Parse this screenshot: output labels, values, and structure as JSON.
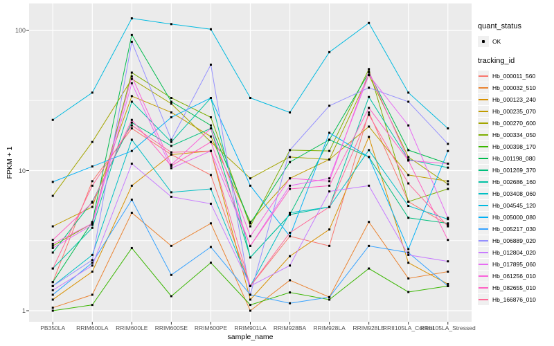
{
  "legend": {
    "quant_status_title": "quant_status",
    "quant_status_items": [
      {
        "label": "OK",
        "marker": "black-point"
      }
    ],
    "tracking_id_title": "tracking_id"
  },
  "axes": {
    "x_title": "sample_name",
    "y_title": "FPKM + 1",
    "y_tick_labels": [
      "100",
      "10",
      "1"
    ]
  },
  "chart_data": {
    "type": "line",
    "title": "",
    "xlabel": "sample_name",
    "ylabel": "FPKM + 1",
    "y_scale": "log10",
    "ylim": [
      0.9,
      160
    ],
    "y_ticks": [
      100,
      10,
      1
    ],
    "y_minor_ticks": [
      31.623,
      3.1623
    ],
    "grid": true,
    "legend_position": "right",
    "point_color": "#000000",
    "panel_background": "#ebebeb",
    "grid_color": "#ffffff",
    "categories": [
      "PB350LA",
      "RRIM600LA",
      "RRIM600LE",
      "RRIM600SE",
      "RRIM600PE",
      "RRIM901LA",
      "RRIM928BA",
      "RRIM928LA",
      "RRIM928LE",
      "RRII105LA_Control",
      "RRII105LA_Stressed"
    ],
    "series": [
      {
        "name": "Hb_000011_560",
        "color": "#F8766D",
        "values": [
          1.6,
          8.4,
          20,
          13,
          9.3,
          1.5,
          3.4,
          2.9,
          26,
          6.0,
          4.1
        ]
      },
      {
        "name": "Hb_000032_510",
        "color": "#EA8331",
        "values": [
          1.05,
          1.3,
          5.0,
          2.9,
          4.2,
          1.0,
          1.65,
          1.25,
          4.3,
          1.7,
          1.9
        ]
      },
      {
        "name": "Hb_000123_240",
        "color": "#D89000",
        "values": [
          1.2,
          1.9,
          7.8,
          13.0,
          13.8,
          1.2,
          2.45,
          3.8,
          17.4,
          2.2,
          1.55
        ]
      },
      {
        "name": "Hb_000235_070",
        "color": "#C09B00",
        "values": [
          4.0,
          5.5,
          34,
          26,
          17.5,
          4.3,
          8.8,
          12,
          20.6,
          9.3,
          8.4
        ]
      },
      {
        "name": "Hb_000270_600",
        "color": "#A3A500",
        "values": [
          6.6,
          16,
          45,
          30,
          16,
          8.8,
          12.5,
          12,
          48,
          12.5,
          8.0
        ]
      },
      {
        "name": "Hb_000334_050",
        "color": "#7CAE00",
        "values": [
          2.9,
          4.2,
          50,
          33,
          24,
          4.0,
          14,
          13.8,
          53,
          6.0,
          7.4
        ]
      },
      {
        "name": "Hb_000398_170",
        "color": "#39B600",
        "values": [
          1.0,
          1.1,
          2.8,
          1.27,
          2.2,
          1.1,
          1.35,
          1.2,
          2.0,
          1.36,
          1.5
        ]
      },
      {
        "name": "Hb_001198_080",
        "color": "#00BB4E",
        "values": [
          1.6,
          4.3,
          93,
          31,
          21,
          4.2,
          11.5,
          16.6,
          50,
          14,
          11.2
        ]
      },
      {
        "name": "Hb_001269_370",
        "color": "#00BF7D",
        "values": [
          2.6,
          6.0,
          22,
          15,
          20,
          2.4,
          4.85,
          16.6,
          12.5,
          4.6,
          4.2
        ]
      },
      {
        "name": "Hb_002686_160",
        "color": "#00C1A3",
        "values": [
          2.0,
          3.9,
          31,
          16,
          33,
          2.4,
          4.85,
          5.5,
          33.5,
          12,
          10.5
        ]
      },
      {
        "name": "Hb_003408_060",
        "color": "#00BFC4",
        "values": [
          1.5,
          2.5,
          16.6,
          7.0,
          7.4,
          1.5,
          5.0,
          5.5,
          14,
          5.6,
          4.5
        ]
      },
      {
        "name": "Hb_004545_120",
        "color": "#00BAE0",
        "values": [
          23,
          36,
          122,
          111,
          102,
          33,
          26,
          70,
          113,
          36,
          20
        ]
      },
      {
        "name": "Hb_005000_080",
        "color": "#00B0F6",
        "values": [
          8.3,
          10.7,
          13.8,
          24,
          33,
          7.8,
          3.4,
          18.6,
          12.5,
          2.75,
          13.8
        ]
      },
      {
        "name": "Hb_005217_030",
        "color": "#35A2FF",
        "values": [
          1.3,
          2.2,
          6.2,
          1.8,
          2.85,
          1.3,
          1.13,
          1.25,
          2.9,
          2.6,
          1.5
        ]
      },
      {
        "name": "Hb_006889_020",
        "color": "#9590FF",
        "values": [
          1.5,
          2.3,
          83,
          16.6,
          57,
          1.3,
          14,
          29,
          39,
          31,
          15.5
        ]
      },
      {
        "name": "Hb_012804_020",
        "color": "#C77CFF",
        "values": [
          1.4,
          2.1,
          11.2,
          6.5,
          5.8,
          1.5,
          2.1,
          7.1,
          7.8,
          2.5,
          2.25
        ]
      },
      {
        "name": "Hb_017895_060",
        "color": "#E76BF3",
        "values": [
          2.8,
          4.1,
          42,
          10.4,
          13.8,
          2.9,
          7.8,
          8.8,
          48,
          21,
          4.6
        ]
      },
      {
        "name": "Hb_061256_010",
        "color": "#FA62DB",
        "values": [
          3.0,
          4.2,
          47,
          11,
          20,
          3.4,
          8.8,
          8.4,
          51,
          11.8,
          11.2
        ]
      },
      {
        "name": "Hb_082655_010",
        "color": "#FF61C3",
        "values": [
          3.2,
          5.9,
          23,
          10.8,
          16,
          2.9,
          7.4,
          7.8,
          28,
          11.8,
          3.2
        ]
      },
      {
        "name": "Hb_166876_010",
        "color": "#FF6A98",
        "values": [
          2.0,
          7.8,
          21,
          13.5,
          13.8,
          1.5,
          3.6,
          5.5,
          25,
          8.1,
          4.0
        ]
      }
    ]
  }
}
